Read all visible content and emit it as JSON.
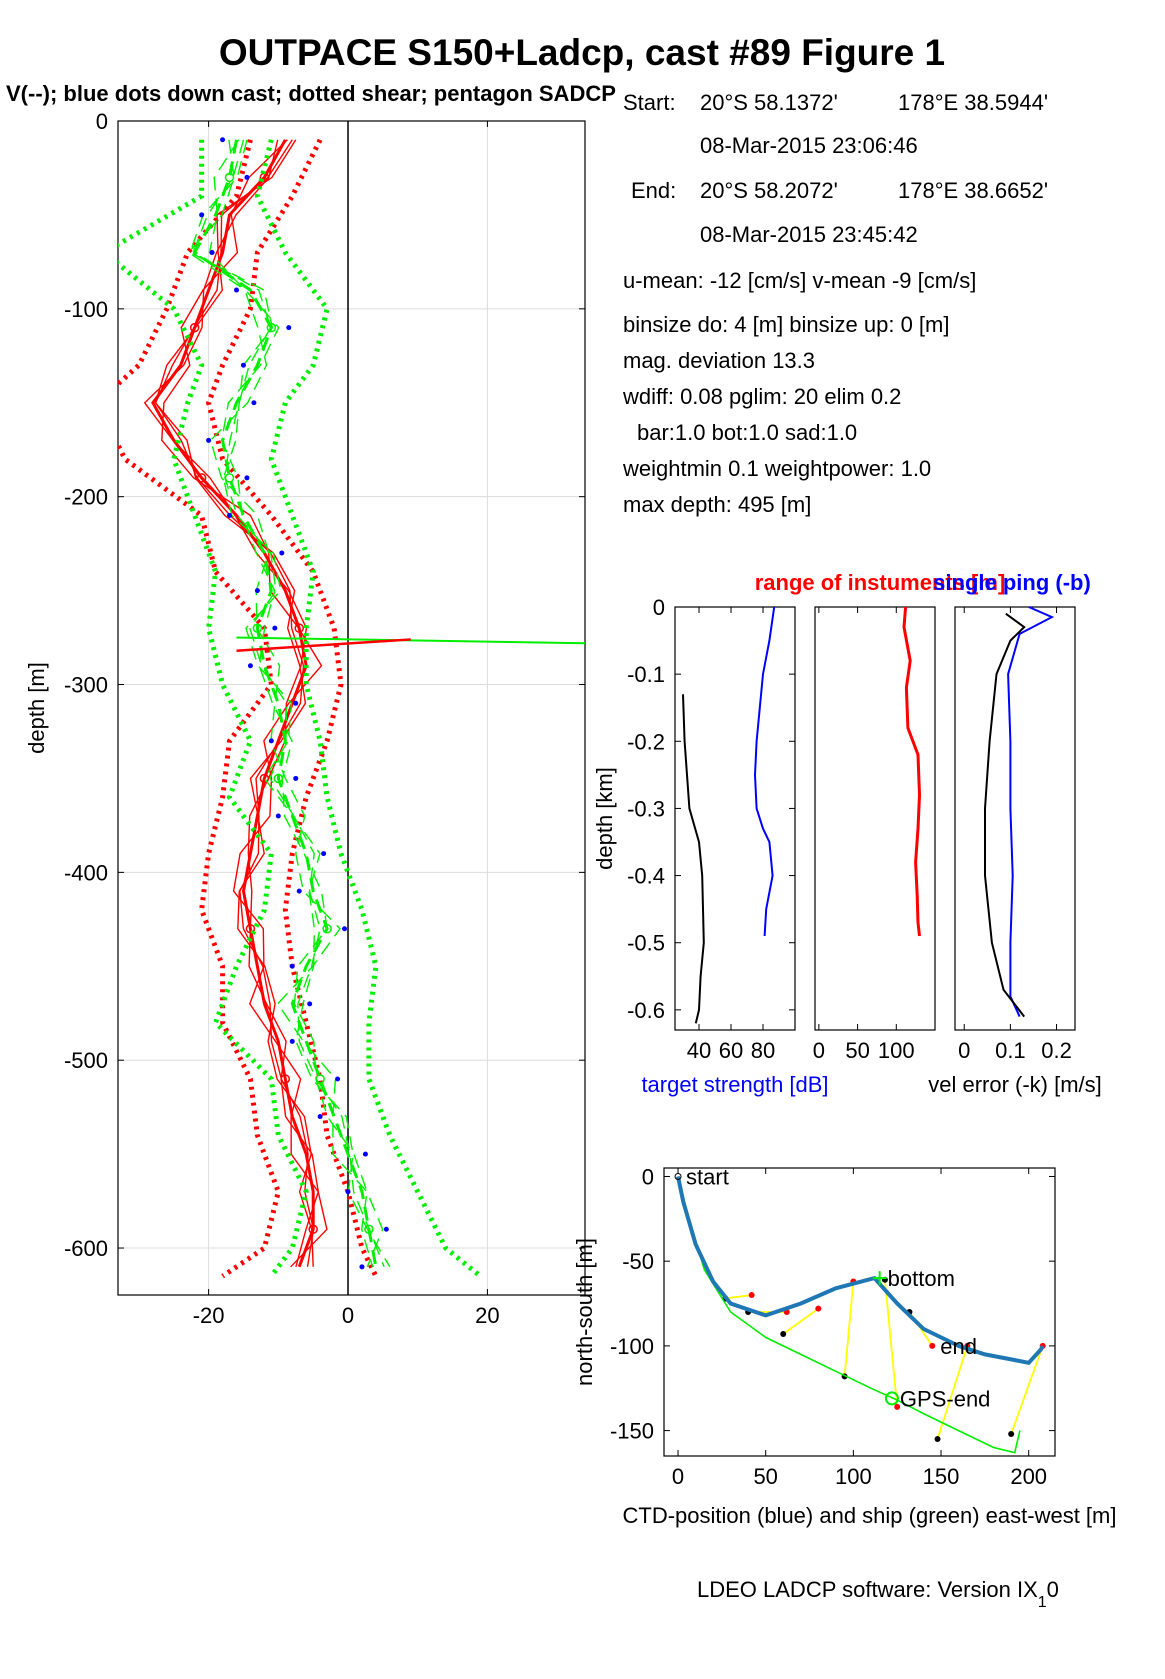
{
  "figure": {
    "title": "OUTPACE S150+Ladcp, cast #89  Figure 1",
    "subtitle": "V(--); blue dots down cast; dotted shear; pentagon SADCP",
    "footer": "LDEO LADCP software: Version IX",
    "footer_sub": "1",
    "footer_end": "0"
  },
  "info": {
    "start_label": "Start:",
    "start_lat": "20°S 58.1372'",
    "start_lon": "178°E 38.5944'",
    "start_time": "08-Mar-2015 23:06:46",
    "end_label": "End:",
    "end_lat": "20°S 58.2072'",
    "end_lon": "178°E 38.6652'",
    "end_time": "08-Mar-2015 23:45:42",
    "means": "u-mean: -12 [cm/s]    v-mean  -9 [cm/s]",
    "binsize": "binsize do: 4 [m]  binsize up:  0 [m]",
    "magdev": "mag. deviation 13.3",
    "wdiff": "wdiff: 0.08  pglim: 20  elim 0.2",
    "weights": "bar:1.0 bot:1.0 sad:1.0",
    "weightmin": "weightmin 0.1  weightpower: 1.0",
    "maxdepth": "max depth: 495 [m]"
  },
  "colors": {
    "red": "#ff0000",
    "green": "#00ee00",
    "blue": "#0000ff",
    "ctd": "#1f77b4",
    "yellow": "#ffff00",
    "black": "#000000"
  },
  "chart_data": [
    {
      "id": "velocity-profile",
      "type": "line",
      "ylabel": "depth [m]",
      "xlim": [
        -33,
        34
      ],
      "ylim": [
        -625,
        0
      ],
      "xticks": [
        -20,
        0,
        20
      ],
      "yticks": [
        0,
        -100,
        -200,
        -300,
        -400,
        -500,
        -600
      ],
      "xtick_labels": [
        "-20",
        "0",
        "20"
      ],
      "ytick_labels": [
        "0",
        "-100",
        "-200",
        "-300",
        "-400",
        "-500",
        "-600"
      ],
      "grid": true,
      "series": [
        {
          "color": "red",
          "style": "solid",
          "component": "u",
          "depth": [
            -10,
            -30,
            -50,
            -70,
            -90,
            -110,
            -130,
            -150,
            -170,
            -190,
            -210,
            -230,
            -250,
            -270,
            -290,
            -310,
            -330,
            -350,
            -370,
            -390,
            -410,
            -430,
            -450,
            -470,
            -490,
            -510,
            -530,
            -550,
            -570,
            -590,
            -610
          ],
          "values": [
            -9,
            -12,
            -17,
            -18,
            -20,
            -22,
            -24,
            -28,
            -25,
            -21,
            -16,
            -12,
            -9,
            -7,
            -6,
            -8,
            -10,
            -12,
            -13,
            -14,
            -15,
            -14,
            -13,
            -12,
            -10,
            -9,
            -8,
            -6,
            -5,
            -5,
            -7
          ]
        },
        {
          "color": "red",
          "style": "dotted",
          "component": "u error band",
          "depth": [
            -10,
            -40,
            -70,
            -100,
            -130,
            -150,
            -180,
            -210,
            -240,
            -270,
            -300,
            -330,
            -360,
            -390,
            -420,
            -450,
            -480,
            -510,
            -540,
            -570,
            -600,
            -615
          ],
          "values": [
            -4,
            -8,
            -13,
            -14,
            -18,
            -20,
            -18,
            -11,
            -5,
            -2,
            -1,
            -3,
            -6,
            -8,
            -9,
            -8,
            -6,
            -4,
            -3,
            0,
            2,
            4
          ]
        },
        {
          "color": "green",
          "style": "dashed",
          "component": "v",
          "depth": [
            -10,
            -30,
            -50,
            -70,
            -90,
            -110,
            -130,
            -150,
            -170,
            -190,
            -210,
            -230,
            -250,
            -270,
            -290,
            -310,
            -330,
            -350,
            -370,
            -390,
            -410,
            -430,
            -450,
            -470,
            -490,
            -510,
            -530,
            -550,
            -570,
            -590,
            -610
          ],
          "values": [
            -16,
            -17,
            -19,
            -22,
            -14,
            -11,
            -13,
            -16,
            -18,
            -17,
            -15,
            -12,
            -11,
            -13,
            -12,
            -10,
            -9,
            -10,
            -8,
            -6,
            -5,
            -3,
            -6,
            -8,
            -6,
            -4,
            -2,
            0,
            2,
            3,
            4
          ]
        },
        {
          "color": "green",
          "style": "dotted",
          "component": "v error band",
          "depth": [
            -10,
            -40,
            -70,
            -100,
            -130,
            -150,
            -180,
            -210,
            -240,
            -270,
            -300,
            -330,
            -360,
            -390,
            -420,
            -450,
            -480,
            -510,
            -540,
            -570,
            -600,
            -615
          ],
          "values": [
            -11,
            -13,
            -9,
            -3,
            -5,
            -9,
            -11,
            -8,
            -5,
            -6,
            -6,
            -4,
            -3,
            -1,
            2,
            4,
            3,
            3,
            6,
            10,
            14,
            19
          ]
        }
      ]
    },
    {
      "id": "target-strength",
      "type": "line",
      "ylabel": "depth [km]",
      "xlabel": "target strength [dB]",
      "xlim": [
        25,
        100
      ],
      "ylim": [
        -0.63,
        0
      ],
      "xticks": [
        40,
        60,
        80
      ],
      "xtick_labels": [
        "40",
        "60",
        "80"
      ],
      "yticks": [
        0,
        -0.1,
        -0.2,
        -0.3,
        -0.4,
        -0.5,
        -0.6
      ],
      "ytick_labels": [
        "0",
        "-0.1",
        "-0.2",
        "-0.3",
        "-0.4",
        "-0.5",
        "-0.6"
      ],
      "series": [
        {
          "color": "blue",
          "depth": [
            0,
            -0.05,
            -0.1,
            -0.15,
            -0.2,
            -0.25,
            -0.3,
            -0.33,
            -0.35,
            -0.4,
            -0.45,
            -0.49
          ],
          "values": [
            87,
            84,
            80,
            78,
            76,
            75,
            76,
            80,
            84,
            86,
            82,
            81
          ]
        },
        {
          "color": "black",
          "depth": [
            -0.13,
            -0.2,
            -0.3,
            -0.35,
            -0.4,
            -0.5,
            -0.55,
            -0.6,
            -0.62
          ],
          "values": [
            30,
            31,
            34,
            40,
            42,
            43,
            41,
            40,
            38
          ]
        }
      ]
    },
    {
      "id": "range-of-instruments",
      "type": "line",
      "title": "range of instuments [m]",
      "xlim": [
        -5,
        150
      ],
      "xticks": [
        0,
        50,
        100
      ],
      "xtick_labels": [
        "0",
        "50",
        "100"
      ],
      "ylim": [
        -0.63,
        0
      ],
      "series": [
        {
          "color": "red",
          "depth": [
            0,
            -0.03,
            -0.08,
            -0.12,
            -0.18,
            -0.22,
            -0.28,
            -0.33,
            -0.38,
            -0.43,
            -0.47,
            -0.49
          ],
          "values": [
            112,
            110,
            118,
            113,
            115,
            128,
            130,
            128,
            125,
            127,
            128,
            130
          ]
        }
      ]
    },
    {
      "id": "velocity-error",
      "type": "line",
      "title": "single ping (-b)",
      "xlabel": "vel error (-k) [m/s]",
      "xlim": [
        -0.02,
        0.24
      ],
      "xticks": [
        0,
        0.1,
        0.2
      ],
      "xtick_labels": [
        "0",
        "0.1",
        "0.2"
      ],
      "ylim": [
        -0.63,
        0
      ],
      "series": [
        {
          "color": "blue",
          "depth": [
            0,
            -0.015,
            -0.04,
            -0.1,
            -0.2,
            -0.3,
            -0.4,
            -0.5,
            -0.58,
            -0.61
          ],
          "values": [
            0.14,
            0.19,
            0.12,
            0.095,
            0.1,
            0.1,
            0.105,
            0.1,
            0.1,
            0.12
          ]
        },
        {
          "color": "black",
          "depth": [
            -0.01,
            -0.03,
            -0.05,
            -0.1,
            -0.2,
            -0.3,
            -0.4,
            -0.5,
            -0.57,
            -0.61
          ],
          "values": [
            0.09,
            0.13,
            0.1,
            0.07,
            0.055,
            0.045,
            0.045,
            0.06,
            0.085,
            0.13
          ]
        }
      ]
    },
    {
      "id": "track",
      "type": "line",
      "xlabel": "CTD-position (blue) and ship (green) east-west [m]",
      "ylabel": "north-south [m]",
      "xlim": [
        -8,
        215
      ],
      "ylim": [
        -165,
        5
      ],
      "xticks": [
        0,
        50,
        100,
        150,
        200
      ],
      "xtick_labels": [
        "0",
        "50",
        "100",
        "150",
        "200"
      ],
      "yticks": [
        0,
        -50,
        -100,
        -150
      ],
      "ytick_labels": [
        "0",
        "-50",
        "-100",
        "-150"
      ],
      "labels": [
        {
          "text": "start",
          "x": 0,
          "y": 0
        },
        {
          "text": "bottom",
          "x": 115,
          "y": -60
        },
        {
          "text": "end",
          "x": 145,
          "y": -100
        },
        {
          "text": "GPS-end",
          "x": 122,
          "y": -131
        }
      ],
      "series": [
        {
          "color": "ctd",
          "x": [
            0,
            3,
            10,
            20,
            30,
            50,
            70,
            90,
            112,
            125,
            140,
            160,
            175,
            190,
            200,
            207,
            208
          ],
          "y": [
            0,
            -15,
            -40,
            -62,
            -75,
            -82,
            -75,
            -66,
            -60,
            -75,
            -90,
            -100,
            -105,
            -108,
            -110,
            -102,
            -100
          ]
        },
        {
          "color": "green",
          "x": [
            0,
            5,
            15,
            30,
            50,
            70,
            90,
            110,
            125,
            140,
            160,
            180,
            192,
            195
          ],
          "y": [
            0,
            -20,
            -55,
            -80,
            -95,
            -105,
            -115,
            -125,
            -132,
            -140,
            -150,
            -160,
            -163,
            -150
          ]
        },
        {
          "color": "yellow",
          "x": [
            27,
            42,
            40,
            62,
            60,
            80,
            95,
            100,
            118,
            125,
            132,
            145,
            148,
            165,
            190,
            208
          ],
          "y": [
            -72,
            -70,
            -80,
            -80,
            -93,
            -78,
            -118,
            -62,
            -61,
            -136,
            -80,
            -100,
            -155,
            -100,
            -152,
            -100
          ]
        }
      ]
    }
  ]
}
